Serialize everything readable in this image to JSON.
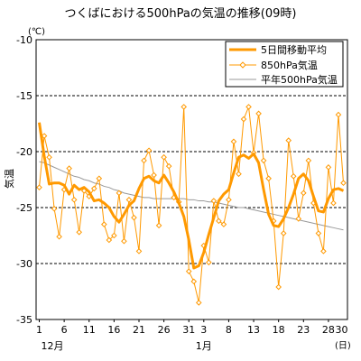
{
  "chart_data": {
    "type": "line",
    "title": "つくばにおける500hPaの気温の推移(09時)",
    "yunit": "(℃)",
    "ylabel": "気温",
    "xunit": "(日)",
    "ylim": [
      -35,
      -10
    ],
    "yticks": [
      -10,
      -15,
      -20,
      -25,
      -30,
      -35
    ],
    "grid": "dashed-horizontal",
    "legend_position": "top-right",
    "x_count": 62,
    "xticks": [
      {
        "index": 0,
        "label": "1"
      },
      {
        "index": 5,
        "label": "6"
      },
      {
        "index": 10,
        "label": "11"
      },
      {
        "index": 15,
        "label": "16"
      },
      {
        "index": 20,
        "label": "21"
      },
      {
        "index": 25,
        "label": "26"
      },
      {
        "index": 30,
        "label": "31"
      },
      {
        "index": 33,
        "label": "3"
      },
      {
        "index": 38,
        "label": "8"
      },
      {
        "index": 43,
        "label": "13"
      },
      {
        "index": 48,
        "label": "18"
      },
      {
        "index": 53,
        "label": "23"
      },
      {
        "index": 58,
        "label": "28"
      }
    ],
    "xtick_tail_label": "30",
    "months": [
      {
        "index": 0,
        "label": "12月"
      },
      {
        "index": 31,
        "label": "1月"
      }
    ],
    "series": [
      {
        "name": "5日間移動平均",
        "color": "#ff9900",
        "style": "thick-line",
        "values": [
          -17.4,
          -20.4,
          -22.9,
          -22.8,
          -22.8,
          -23.0,
          -23.8,
          -23.0,
          -23.4,
          -23.2,
          -23.6,
          -24.4,
          -24.3,
          -24.6,
          -25.0,
          -25.8,
          -26.3,
          -25.6,
          -24.8,
          -24.4,
          -23.3,
          -22.4,
          -22.2,
          -22.6,
          -22.8,
          -22.1,
          -22.8,
          -23.6,
          -24.6,
          -25.8,
          -27.9,
          -30.4,
          -30.2,
          -29.0,
          -27.4,
          -25.9,
          -24.4,
          -23.8,
          -23.4,
          -21.9,
          -20.5,
          -20.3,
          -20.6,
          -20.2,
          -21.0,
          -23.4,
          -25.6,
          -26.6,
          -26.7,
          -26.0,
          -25.0,
          -23.8,
          -22.4,
          -22.0,
          -22.6,
          -24.0,
          -25.3,
          -25.4,
          -24.2,
          -23.4,
          -23.3,
          -23.5
        ]
      },
      {
        "name": "850hPa気温",
        "color": "#ff9900",
        "style": "thin-line-diamond",
        "values": [
          -23.2,
          -18.6,
          -20.5,
          -25.1,
          -27.6,
          -23.4,
          -21.5,
          -24.3,
          -27.2,
          -23.5,
          -24.0,
          -23.3,
          -22.4,
          -26.5,
          -27.9,
          -27.5,
          -23.7,
          -28.0,
          -24.3,
          -25.9,
          -28.9,
          -20.8,
          -19.9,
          -22.1,
          -26.6,
          -20.5,
          -21.3,
          -24.1,
          -24.5,
          -16.0,
          -30.7,
          -31.6,
          -33.5,
          -28.4,
          -29.9,
          -24.4,
          -26.2,
          -26.5,
          -24.3,
          -19.1,
          -22.0,
          -17.1,
          -16.0,
          -20.1,
          -16.6,
          -20.8,
          -22.4,
          -26.2,
          -32.1,
          -27.3,
          -19.0,
          -22.2,
          -26.0,
          -23.7,
          -20.8,
          -24.6,
          -27.3,
          -28.9,
          -21.4,
          -24.6,
          -16.7,
          -22.8
        ]
      },
      {
        "name": "平年500hPa気温",
        "color": "#999999",
        "style": "thin-line",
        "values": [
          -20.9,
          -21.0,
          -21.2,
          -21.4,
          -21.6,
          -21.8,
          -22.0,
          -22.2,
          -22.3,
          -22.5,
          -22.6,
          -22.8,
          -22.9,
          -23.1,
          -23.2,
          -23.4,
          -23.5,
          -23.7,
          -23.8,
          -23.9,
          -24.0,
          -24.1,
          -24.1,
          -24.2,
          -24.2,
          -24.2,
          -24.2,
          -24.2,
          -24.2,
          -24.2,
          -24.3,
          -24.3,
          -24.4,
          -24.4,
          -24.5,
          -24.5,
          -24.6,
          -24.7,
          -24.8,
          -24.9,
          -25.0,
          -25.0,
          -25.1,
          -25.2,
          -25.3,
          -25.4,
          -25.5,
          -25.6,
          -25.7,
          -25.8,
          -25.9,
          -26.0,
          -26.1,
          -26.2,
          -26.3,
          -26.4,
          -26.5,
          -26.6,
          -26.7,
          -26.8,
          -26.9,
          -27.0
        ]
      }
    ]
  }
}
